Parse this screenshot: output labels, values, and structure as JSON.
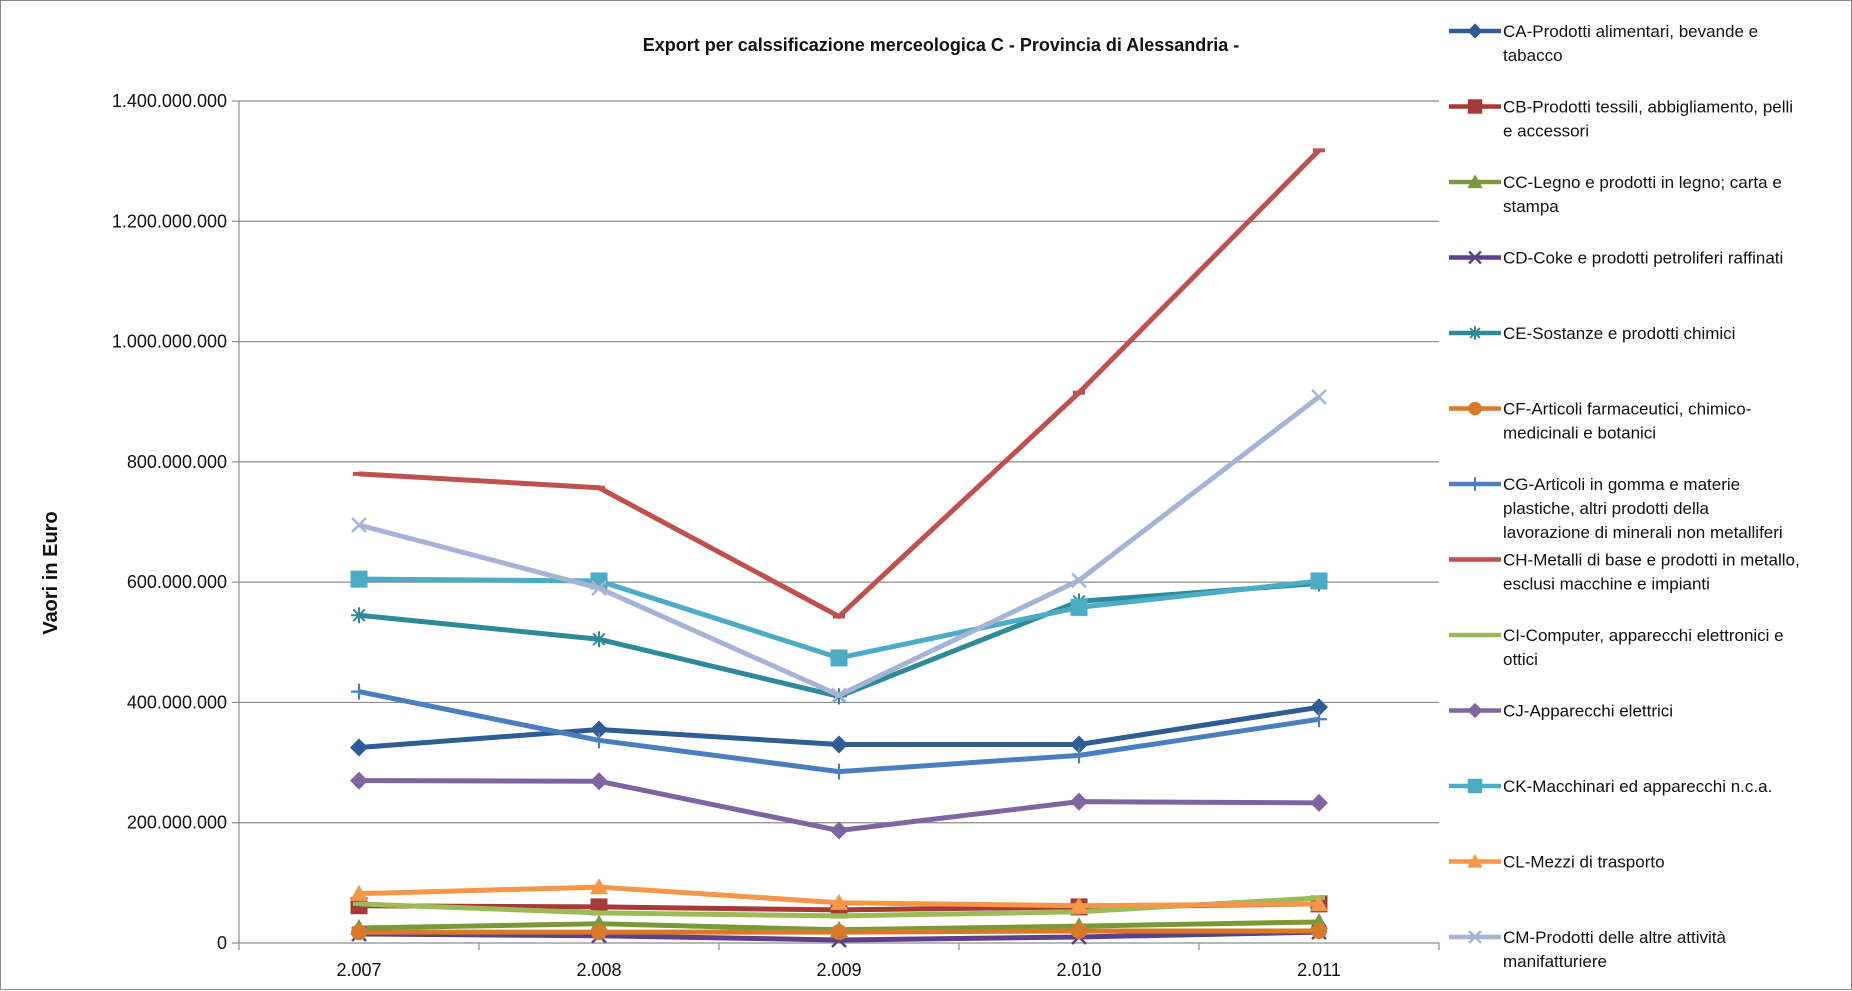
{
  "chart_data": {
    "type": "line",
    "title": "Export per calssificazione merceologica C - Provincia di Alessandria -",
    "xlabel": "",
    "ylabel": "Vaori in Euro",
    "categories": [
      "2.007",
      "2.008",
      "2.009",
      "2.010",
      "2.011"
    ],
    "ylim": [
      0,
      1400000000
    ],
    "yticks": [
      0,
      200000000,
      400000000,
      600000000,
      800000000,
      1000000000,
      1200000000,
      1400000000
    ],
    "ytick_labels": [
      "0",
      "200.000.000",
      "400.000.000",
      "600.000.000",
      "800.000.000",
      "1.000.000.000",
      "1.200.000.000",
      "1.400.000.000"
    ],
    "grid": "horizontal",
    "legend_position": "right",
    "series": [
      {
        "name": "CA-Prodotti alimentari, bevande e tabacco",
        "color": "#2E5C94",
        "marker": "diamond",
        "values": [
          325000000,
          355000000,
          330000000,
          330000000,
          392000000
        ]
      },
      {
        "name": "CB-Prodotti tessili, abbigliamento, pelli e accessori",
        "color": "#A63A37",
        "marker": "square",
        "values": [
          62000000,
          60000000,
          55000000,
          60000000,
          65000000
        ]
      },
      {
        "name": "CC-Legno e prodotti in legno; carta e stampa",
        "color": "#7A9A3A",
        "marker": "triangle",
        "values": [
          25000000,
          32000000,
          22000000,
          28000000,
          35000000
        ]
      },
      {
        "name": "CD-Coke e prodotti petroliferi raffinati",
        "color": "#5E3F8A",
        "marker": "x",
        "values": [
          15000000,
          12000000,
          5000000,
          10000000,
          18000000
        ]
      },
      {
        "name": "CE-Sostanze e prodotti chimici",
        "color": "#2C8A99",
        "marker": "star",
        "values": [
          545000000,
          505000000,
          410000000,
          568000000,
          598000000
        ]
      },
      {
        "name": "CF-Articoli farmaceutici, chimico-medicinali e botanici",
        "color": "#D67A2A",
        "marker": "circle",
        "values": [
          18000000,
          18000000,
          18000000,
          20000000,
          20000000
        ]
      },
      {
        "name": "CG-Articoli in gomma e materie plastiche, altri prodotti della lavorazione di minerali non metalliferi",
        "color": "#4A7EC0",
        "marker": "plus",
        "values": [
          418000000,
          337000000,
          285000000,
          312000000,
          372000000
        ]
      },
      {
        "name": "CH-Metalli di base e prodotti in metallo, esclusi macchine e impianti",
        "color": "#C0504D",
        "marker": "dash",
        "values": [
          780000000,
          757000000,
          543000000,
          915000000,
          1318000000
        ]
      },
      {
        "name": "CI-Computer, apparecchi elettronici e ottici",
        "color": "#9BBB59",
        "marker": "dash",
        "values": [
          65000000,
          50000000,
          45000000,
          52000000,
          75000000
        ]
      },
      {
        "name": "CJ-Apparecchi elettrici",
        "color": "#8064A2",
        "marker": "diamond",
        "values": [
          270000000,
          269000000,
          187000000,
          235000000,
          233000000
        ]
      },
      {
        "name": "CK-Macchinari ed apparecchi n.c.a.",
        "color": "#4BACC6",
        "marker": "square",
        "values": [
          605000000,
          602000000,
          474000000,
          558000000,
          602000000
        ]
      },
      {
        "name": "CL-Mezzi di trasporto",
        "color": "#F79646",
        "marker": "triangle",
        "values": [
          82000000,
          93000000,
          67000000,
          62000000,
          65000000
        ]
      },
      {
        "name": "CM-Prodotti delle altre attività manifatturiere",
        "color": "#A5B4D6",
        "marker": "x",
        "values": [
          695000000,
          590000000,
          412000000,
          603000000,
          908000000
        ]
      }
    ]
  }
}
